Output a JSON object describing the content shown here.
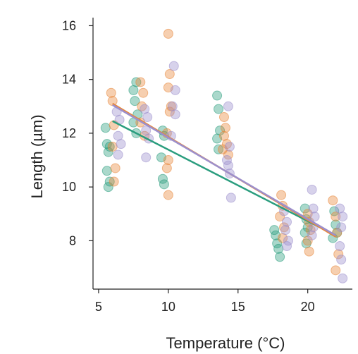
{
  "chart_data": {
    "type": "scatter",
    "xlabel": "Temperature (°C)",
    "ylabel": "Length (µm)",
    "xlim": [
      4.6,
      23.2
    ],
    "ylim": [
      6.2,
      16.3
    ],
    "xticks": [
      5,
      10,
      15,
      20
    ],
    "yticks": [
      8,
      10,
      12,
      14,
      16
    ],
    "series": [
      {
        "color": "#2a9d7e",
        "points": [
          [
            5.5,
            12.2
          ],
          [
            5.6,
            11.6
          ],
          [
            5.7,
            11.3
          ],
          [
            5.8,
            11.5
          ],
          [
            5.6,
            10.6
          ],
          [
            5.8,
            10.2
          ],
          [
            5.7,
            10.0
          ],
          [
            7.5,
            13.6
          ],
          [
            7.7,
            13.9
          ],
          [
            7.6,
            13.2
          ],
          [
            7.5,
            12.4
          ],
          [
            7.7,
            12.0
          ],
          [
            7.8,
            12.7
          ],
          [
            9.6,
            12.1
          ],
          [
            9.7,
            11.9
          ],
          [
            9.5,
            11.1
          ],
          [
            9.6,
            10.3
          ],
          [
            9.7,
            10.1
          ],
          [
            13.5,
            13.4
          ],
          [
            13.6,
            12.9
          ],
          [
            13.5,
            11.8
          ],
          [
            13.6,
            11.4
          ],
          [
            13.7,
            12.1
          ],
          [
            17.6,
            8.4
          ],
          [
            17.7,
            8.2
          ],
          [
            17.8,
            7.9
          ],
          [
            17.9,
            7.7
          ],
          [
            18.0,
            7.4
          ],
          [
            19.8,
            9.2
          ],
          [
            19.9,
            8.8
          ],
          [
            20.0,
            8.5
          ],
          [
            19.8,
            8.3
          ],
          [
            19.9,
            7.9
          ],
          [
            21.9,
            9.1
          ],
          [
            22.0,
            8.6
          ],
          [
            22.1,
            8.3
          ],
          [
            21.8,
            8.1
          ]
        ]
      },
      {
        "color": "#e8873a",
        "points": [
          [
            5.9,
            13.5
          ],
          [
            6.0,
            13.2
          ],
          [
            6.1,
            12.3
          ],
          [
            6.0,
            11.5
          ],
          [
            6.2,
            10.7
          ],
          [
            6.1,
            10.2
          ],
          [
            8.0,
            13.9
          ],
          [
            8.2,
            13.5
          ],
          [
            8.1,
            13.0
          ],
          [
            8.0,
            12.4
          ],
          [
            8.3,
            11.9
          ],
          [
            10.0,
            15.7
          ],
          [
            10.1,
            14.2
          ],
          [
            10.0,
            13.7
          ],
          [
            10.2,
            13.0
          ],
          [
            10.1,
            12.8
          ],
          [
            9.9,
            12.0
          ],
          [
            10.0,
            11.0
          ],
          [
            9.9,
            10.7
          ],
          [
            10.0,
            9.7
          ],
          [
            14.0,
            12.6
          ],
          [
            14.1,
            12.2
          ],
          [
            13.9,
            11.4
          ],
          [
            14.2,
            11.6
          ],
          [
            14.3,
            11.2
          ],
          [
            14.0,
            11.9
          ],
          [
            18.1,
            9.7
          ],
          [
            18.2,
            9.3
          ],
          [
            18.0,
            8.9
          ],
          [
            18.3,
            8.5
          ],
          [
            18.2,
            8.1
          ],
          [
            20.0,
            9.0
          ],
          [
            20.1,
            8.7
          ],
          [
            20.2,
            8.4
          ],
          [
            20.0,
            8.0
          ],
          [
            20.1,
            7.6
          ],
          [
            21.8,
            9.5
          ],
          [
            22.0,
            8.9
          ],
          [
            22.1,
            8.3
          ],
          [
            22.2,
            7.5
          ],
          [
            22.0,
            6.9
          ]
        ]
      },
      {
        "color": "#9c8fcc",
        "points": [
          [
            6.3,
            12.8
          ],
          [
            6.5,
            12.5
          ],
          [
            6.4,
            11.9
          ],
          [
            6.6,
            11.6
          ],
          [
            6.4,
            11.2
          ],
          [
            8.3,
            12.9
          ],
          [
            8.5,
            12.6
          ],
          [
            8.4,
            12.1
          ],
          [
            8.6,
            11.8
          ],
          [
            8.4,
            11.1
          ],
          [
            10.4,
            14.5
          ],
          [
            10.5,
            13.6
          ],
          [
            10.3,
            13.0
          ],
          [
            10.5,
            12.7
          ],
          [
            10.2,
            11.9
          ],
          [
            14.3,
            13.0
          ],
          [
            14.4,
            11.5
          ],
          [
            14.2,
            11.0
          ],
          [
            14.3,
            10.8
          ],
          [
            14.4,
            10.5
          ],
          [
            14.5,
            9.6
          ],
          [
            18.3,
            9.1
          ],
          [
            18.5,
            8.7
          ],
          [
            18.4,
            8.4
          ],
          [
            18.6,
            8.0
          ],
          [
            18.5,
            7.8
          ],
          [
            20.3,
            9.9
          ],
          [
            20.4,
            9.2
          ],
          [
            20.5,
            8.9
          ],
          [
            20.4,
            8.5
          ],
          [
            20.3,
            8.2
          ],
          [
            22.3,
            9.2
          ],
          [
            22.5,
            8.9
          ],
          [
            22.4,
            8.5
          ],
          [
            22.3,
            7.8
          ],
          [
            22.4,
            7.3
          ],
          [
            22.5,
            6.6
          ]
        ]
      }
    ],
    "fit_lines": [
      {
        "color": "#2a9d7e",
        "x": [
          6.0,
          22.0
        ],
        "y": [
          12.45,
          8.2
        ]
      },
      {
        "color": "#e8873a",
        "x": [
          6.0,
          22.0
        ],
        "y": [
          13.1,
          8.15
        ]
      },
      {
        "color": "#9c8fcc",
        "x": [
          6.0,
          22.0
        ],
        "y": [
          13.05,
          8.2
        ]
      }
    ]
  }
}
